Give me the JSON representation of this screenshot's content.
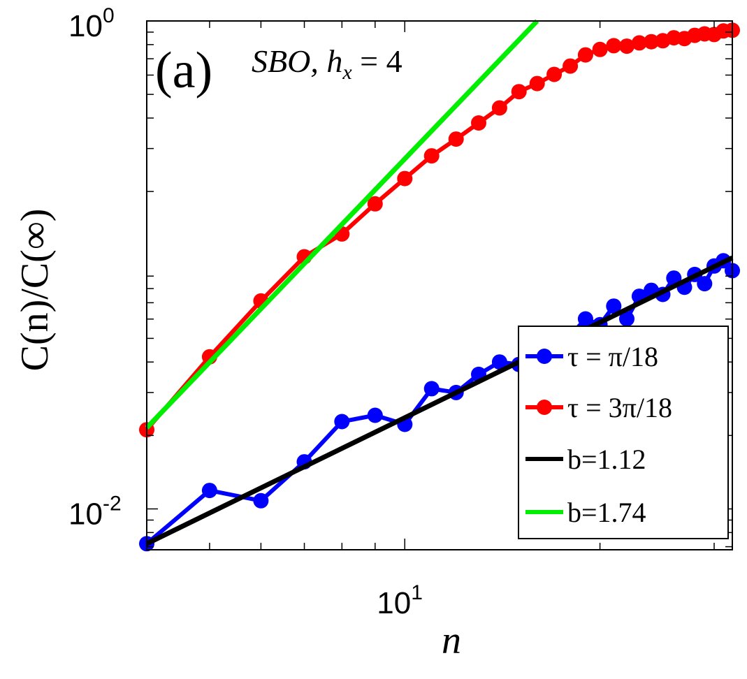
{
  "chart_data": {
    "type": "line",
    "panel_label": "(a)",
    "annotation": "SBO, h_x = 4",
    "annotation_parts": {
      "text": "SBO, ",
      "var": "h",
      "sub": "x",
      "rest": " = 4"
    },
    "xlabel": "n",
    "ylabel": "C(n)/C(∞)",
    "xscale": "log",
    "yscale": "log",
    "xlim": [
      4,
      32
    ],
    "ylim": [
      0.0068,
      1
    ],
    "x_ticks": [
      {
        "value": 10,
        "base": "10",
        "exp": "1"
      }
    ],
    "y_ticks": [
      {
        "value": 1,
        "base": "10",
        "exp": "0"
      },
      {
        "value": 0.01,
        "base": "10",
        "exp": "-2"
      }
    ],
    "grid": false,
    "legend_position": "bottom-right",
    "series": [
      {
        "name": "τ = π/18",
        "kind": "markers+line",
        "color": "#0000ff",
        "x": [
          4,
          5,
          6,
          7,
          8,
          9,
          10,
          11,
          12,
          13,
          14,
          15,
          16,
          17,
          18,
          19,
          20,
          21,
          22,
          23,
          24,
          25,
          26,
          27,
          28,
          29,
          30,
          31,
          32
        ],
        "y": [
          0.0072,
          0.0119,
          0.0108,
          0.0156,
          0.0228,
          0.0242,
          0.0222,
          0.0311,
          0.03,
          0.0356,
          0.04,
          0.0391,
          0.0441,
          0.0482,
          0.0513,
          0.0601,
          0.0569,
          0.0678,
          0.0601,
          0.0744,
          0.0787,
          0.0757,
          0.0883,
          0.081,
          0.0914,
          0.0838,
          0.099,
          0.104,
          0.0948
        ]
      },
      {
        "name": "τ = 3π/18",
        "kind": "markers+line",
        "color": "#ff0000",
        "x": [
          4,
          5,
          6,
          7,
          8,
          9,
          10,
          11,
          12,
          13,
          14,
          15,
          16,
          17,
          18,
          19,
          20,
          21,
          22,
          23,
          24,
          25,
          26,
          27,
          28,
          29,
          30,
          31,
          32
        ],
        "y": [
          0.0211,
          0.042,
          0.0712,
          0.108,
          0.134,
          0.178,
          0.226,
          0.28,
          0.328,
          0.382,
          0.44,
          0.513,
          0.554,
          0.604,
          0.653,
          0.726,
          0.764,
          0.792,
          0.788,
          0.813,
          0.822,
          0.83,
          0.853,
          0.847,
          0.873,
          0.885,
          0.88,
          0.91,
          0.916
        ]
      },
      {
        "name": "b=1.12",
        "kind": "fit-line",
        "color": "#000000",
        "x": [
          4,
          32
        ],
        "y": [
          0.0072,
          0.107
        ]
      },
      {
        "name": "b=1.74",
        "kind": "fit-line",
        "color": "#00ee00",
        "x": [
          4,
          16.0
        ],
        "y": [
          0.0215,
          1.0
        ]
      }
    ]
  }
}
